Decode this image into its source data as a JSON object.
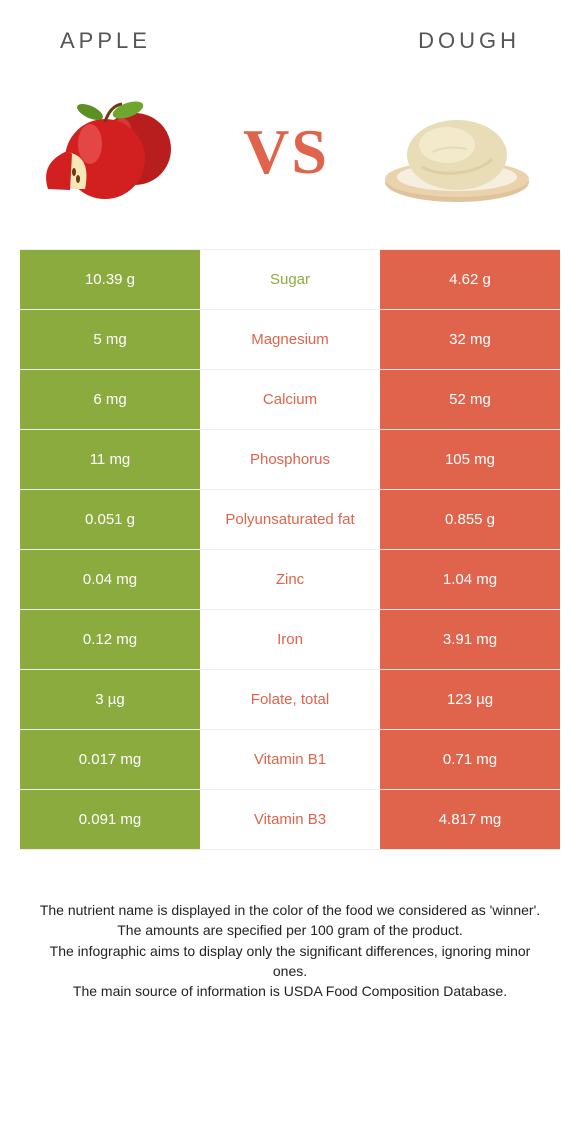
{
  "colors": {
    "apple_green": "#8CAB3F",
    "dough_orange": "#E0634C",
    "white": "#FFFFFF",
    "row_border": "#EEEEEE"
  },
  "header": {
    "left": "APPLE",
    "right": "DOUGH"
  },
  "vs": "VS",
  "rows": [
    {
      "nutrient": "Sugar",
      "left": "10.39 g",
      "right": "4.62 g",
      "winner": "left"
    },
    {
      "nutrient": "Magnesium",
      "left": "5 mg",
      "right": "32 mg",
      "winner": "right"
    },
    {
      "nutrient": "Calcium",
      "left": "6 mg",
      "right": "52 mg",
      "winner": "right"
    },
    {
      "nutrient": "Phosphorus",
      "left": "11 mg",
      "right": "105 mg",
      "winner": "right"
    },
    {
      "nutrient": "Polyunsaturated fat",
      "left": "0.051 g",
      "right": "0.855 g",
      "winner": "right"
    },
    {
      "nutrient": "Zinc",
      "left": "0.04 mg",
      "right": "1.04 mg",
      "winner": "right"
    },
    {
      "nutrient": "Iron",
      "left": "0.12 mg",
      "right": "3.91 mg",
      "winner": "right"
    },
    {
      "nutrient": "Folate, total",
      "left": "3 µg",
      "right": "123 µg",
      "winner": "right"
    },
    {
      "nutrient": "Vitamin B1",
      "left": "0.017 mg",
      "right": "0.71 mg",
      "winner": "right"
    },
    {
      "nutrient": "Vitamin B3",
      "left": "0.091 mg",
      "right": "4.817 mg",
      "winner": "right"
    }
  ],
  "footer": {
    "l1": "The nutrient name is displayed in the color of the food we considered as 'winner'.",
    "l2": "The amounts are specified per 100 gram of the product.",
    "l3": "The infographic aims to display only the significant differences, ignoring minor ones.",
    "l4": "The main source of information is USDA Food Composition Database."
  }
}
